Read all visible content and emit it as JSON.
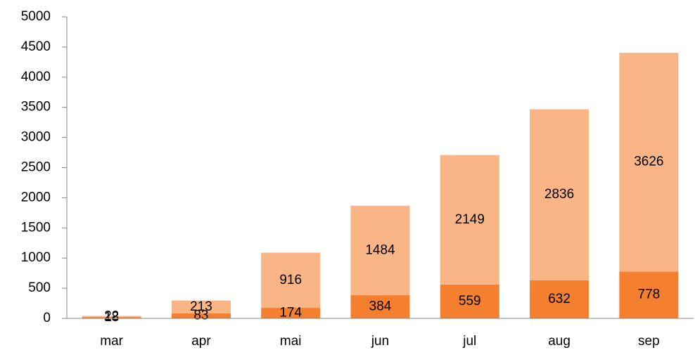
{
  "chart_data": {
    "type": "stacked_bar",
    "categories": [
      "mar",
      "apr",
      "mai",
      "jun",
      "jul",
      "aug",
      "sep"
    ],
    "series": [
      {
        "color": "#f47f2f",
        "values": [
          18,
          83,
          174,
          384,
          559,
          632,
          778
        ]
      },
      {
        "color": "#f9b586",
        "values": [
          22,
          213,
          916,
          1484,
          2149,
          2836,
          3626
        ]
      }
    ],
    "ylim": [
      0,
      5000
    ],
    "yticks": [
      0,
      500,
      1000,
      1500,
      2000,
      2500,
      3000,
      3500,
      4000,
      4500,
      5000
    ],
    "grid": false
  }
}
